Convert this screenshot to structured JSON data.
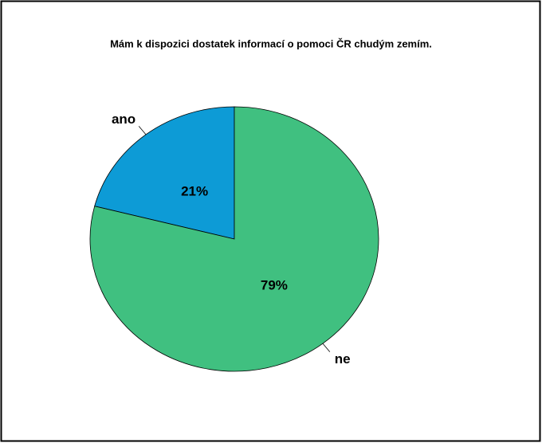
{
  "chart_data": {
    "type": "pie",
    "title": "Mám k dispozici dostatek informací o pomoci ČR chudým zemím.",
    "categories": [
      "ano",
      "ne"
    ],
    "values": [
      21,
      79
    ],
    "value_labels": [
      "21%",
      "79%"
    ],
    "colors": [
      "#0d9bd6",
      "#40c080"
    ]
  }
}
